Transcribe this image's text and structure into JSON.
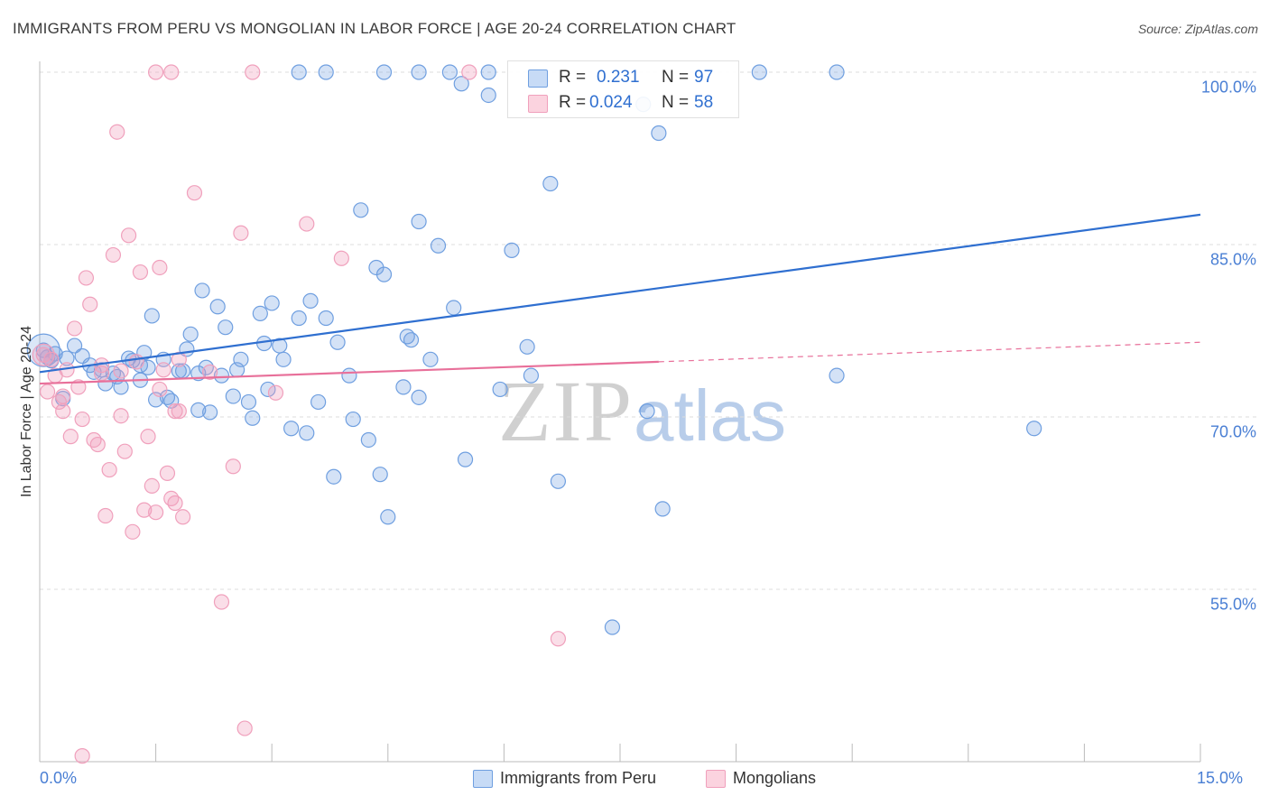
{
  "title": "IMMIGRANTS FROM PERU VS MONGOLIAN IN LABOR FORCE | AGE 20-24 CORRELATION CHART",
  "source": "Source: ZipAtlas.com",
  "watermark": {
    "zip": "ZIP",
    "atlas": "atlas"
  },
  "colors": {
    "blue": "#6f9fe0",
    "blue_line": "#2f6fd0",
    "pink": "#f0a0bc",
    "pink_line": "#e8709a",
    "grid": "#dddddd",
    "tick_text": "#4a7fd4"
  },
  "legend": {
    "rows": [
      {
        "r_label": "R =",
        "r_value": "0.231",
        "n_label": "N =",
        "n_value": "97"
      },
      {
        "r_label": "R =",
        "r_value": "0.024",
        "n_label": "N =",
        "n_value": "58"
      }
    ]
  },
  "bottom_legend": [
    "Immigrants from Peru",
    "Mongolians"
  ],
  "chart_data": {
    "type": "scatter",
    "xlabel": "",
    "ylabel": "In Labor Force | Age 20-24",
    "xlim": [
      0,
      15
    ],
    "ylim": [
      40.5,
      102.5
    ],
    "x_tick_labels": [
      "0.0%",
      "15.0%"
    ],
    "y_ticks": [
      55,
      70,
      85,
      100
    ],
    "y_tick_labels": [
      "55.0%",
      "70.0%",
      "85.0%",
      "100.0%"
    ],
    "series": [
      {
        "name": "Immigrants from Peru",
        "R": 0.231,
        "N": 97,
        "trend": {
          "x0": 0,
          "y0": 73.9,
          "x1": 15,
          "y1": 87.6
        },
        "points": [
          [
            0.05,
            75.8
          ],
          [
            0.1,
            75.2
          ],
          [
            0.15,
            74.9
          ],
          [
            0.2,
            75.5
          ],
          [
            0.3,
            71.6
          ],
          [
            0.35,
            75.1
          ],
          [
            0.45,
            76.2
          ],
          [
            0.55,
            75.3
          ],
          [
            0.65,
            74.5
          ],
          [
            0.8,
            74.1
          ],
          [
            0.85,
            72.9
          ],
          [
            0.95,
            73.8
          ],
          [
            1.0,
            73.5
          ],
          [
            1.05,
            72.6
          ],
          [
            1.15,
            75.1
          ],
          [
            1.2,
            74.9
          ],
          [
            1.3,
            73.2
          ],
          [
            1.35,
            75.6
          ],
          [
            1.4,
            74.3
          ],
          [
            1.45,
            78.8
          ],
          [
            1.5,
            71.5
          ],
          [
            1.6,
            75.0
          ],
          [
            1.65,
            71.7
          ],
          [
            1.7,
            71.4
          ],
          [
            1.8,
            74.0
          ],
          [
            1.85,
            74.0
          ],
          [
            1.9,
            75.9
          ],
          [
            1.95,
            77.2
          ],
          [
            2.05,
            70.6
          ],
          [
            2.1,
            81.0
          ],
          [
            2.15,
            74.3
          ],
          [
            2.2,
            70.4
          ],
          [
            2.3,
            79.6
          ],
          [
            2.35,
            73.6
          ],
          [
            2.4,
            77.8
          ],
          [
            2.5,
            71.8
          ],
          [
            2.55,
            74.1
          ],
          [
            2.6,
            75.0
          ],
          [
            2.7,
            71.3
          ],
          [
            2.75,
            69.9
          ],
          [
            2.85,
            79.0
          ],
          [
            2.9,
            76.4
          ],
          [
            2.95,
            72.4
          ],
          [
            3.0,
            79.9
          ],
          [
            3.1,
            76.2
          ],
          [
            3.15,
            75.0
          ],
          [
            3.25,
            69.0
          ],
          [
            3.35,
            78.6
          ],
          [
            3.45,
            68.6
          ],
          [
            3.5,
            80.1
          ],
          [
            3.6,
            71.3
          ],
          [
            3.7,
            78.6
          ],
          [
            3.8,
            64.8
          ],
          [
            3.85,
            76.5
          ],
          [
            4.0,
            73.6
          ],
          [
            4.05,
            69.8
          ],
          [
            4.15,
            88.0
          ],
          [
            4.25,
            68.0
          ],
          [
            4.35,
            83.0
          ],
          [
            4.4,
            65.0
          ],
          [
            4.45,
            82.4
          ],
          [
            4.5,
            61.3
          ],
          [
            4.7,
            72.6
          ],
          [
            4.75,
            77.0
          ],
          [
            4.8,
            76.7
          ],
          [
            4.9,
            71.7
          ],
          [
            5.05,
            75.0
          ],
          [
            5.15,
            84.9
          ],
          [
            5.35,
            79.5
          ],
          [
            5.5,
            66.3
          ],
          [
            5.95,
            72.4
          ],
          [
            6.1,
            84.5
          ],
          [
            6.3,
            76.1
          ],
          [
            6.35,
            73.6
          ],
          [
            6.6,
            90.3
          ],
          [
            6.7,
            64.4
          ],
          [
            7.85,
            70.5
          ],
          [
            8.0,
            94.7
          ],
          [
            8.05,
            62.0
          ],
          [
            7.4,
            51.7
          ],
          [
            10.3,
            73.6
          ],
          [
            12.85,
            69.0
          ],
          [
            3.35,
            100.0
          ],
          [
            3.7,
            100.0
          ],
          [
            4.9,
            87.0
          ],
          [
            4.9,
            100.0
          ],
          [
            5.3,
            100.0
          ],
          [
            5.45,
            99.0
          ],
          [
            5.8,
            100.0
          ],
          [
            5.8,
            98.0
          ],
          [
            7.8,
            97.2
          ],
          [
            9.3,
            100.0
          ],
          [
            10.3,
            100.0
          ],
          [
            4.45,
            100.0
          ],
          [
            2.05,
            73.8
          ],
          [
            1.3,
            74.5
          ],
          [
            0.7,
            73.9
          ]
        ]
      },
      {
        "name": "Mongolians",
        "R": 0.024,
        "N": 58,
        "trend": {
          "x0": 0,
          "y0": 72.9,
          "x1": 8.0,
          "y1": 74.8,
          "dash_x1": 15,
          "dash_y1": 76.5
        },
        "points": [
          [
            0.05,
            75.4
          ],
          [
            0.1,
            72.2
          ],
          [
            0.15,
            75.0
          ],
          [
            0.2,
            73.6
          ],
          [
            0.25,
            71.3
          ],
          [
            0.3,
            70.5
          ],
          [
            0.35,
            74.1
          ],
          [
            0.4,
            68.3
          ],
          [
            0.45,
            77.7
          ],
          [
            0.5,
            72.6
          ],
          [
            0.55,
            69.8
          ],
          [
            0.6,
            82.1
          ],
          [
            0.65,
            79.8
          ],
          [
            0.7,
            68.0
          ],
          [
            0.75,
            67.6
          ],
          [
            0.8,
            73.8
          ],
          [
            0.85,
            61.4
          ],
          [
            0.9,
            65.4
          ],
          [
            0.95,
            84.1
          ],
          [
            1.0,
            94.8
          ],
          [
            1.05,
            70.1
          ],
          [
            1.1,
            67.0
          ],
          [
            1.15,
            85.8
          ],
          [
            1.2,
            60.0
          ],
          [
            1.25,
            74.8
          ],
          [
            1.3,
            82.6
          ],
          [
            1.35,
            61.9
          ],
          [
            1.4,
            68.3
          ],
          [
            1.45,
            64.0
          ],
          [
            1.5,
            61.7
          ],
          [
            1.55,
            72.4
          ],
          [
            1.6,
            74.1
          ],
          [
            1.65,
            65.1
          ],
          [
            1.7,
            62.9
          ],
          [
            1.75,
            70.5
          ],
          [
            1.8,
            75.0
          ],
          [
            1.85,
            61.3
          ],
          [
            2.0,
            89.5
          ],
          [
            2.2,
            73.9
          ],
          [
            2.35,
            53.9
          ],
          [
            2.5,
            65.7
          ],
          [
            2.6,
            86.0
          ],
          [
            2.65,
            42.9
          ],
          [
            3.05,
            72.1
          ],
          [
            3.45,
            86.8
          ],
          [
            3.9,
            83.8
          ],
          [
            1.8,
            70.5
          ],
          [
            1.55,
            83.0
          ],
          [
            1.5,
            100.0
          ],
          [
            1.7,
            100.0
          ],
          [
            2.75,
            100.0
          ],
          [
            5.55,
            100.0
          ],
          [
            6.7,
            50.7
          ],
          [
            0.55,
            40.5
          ],
          [
            0.3,
            71.8
          ],
          [
            1.75,
            62.5
          ],
          [
            0.8,
            74.5
          ],
          [
            1.05,
            74.0
          ]
        ]
      }
    ]
  }
}
